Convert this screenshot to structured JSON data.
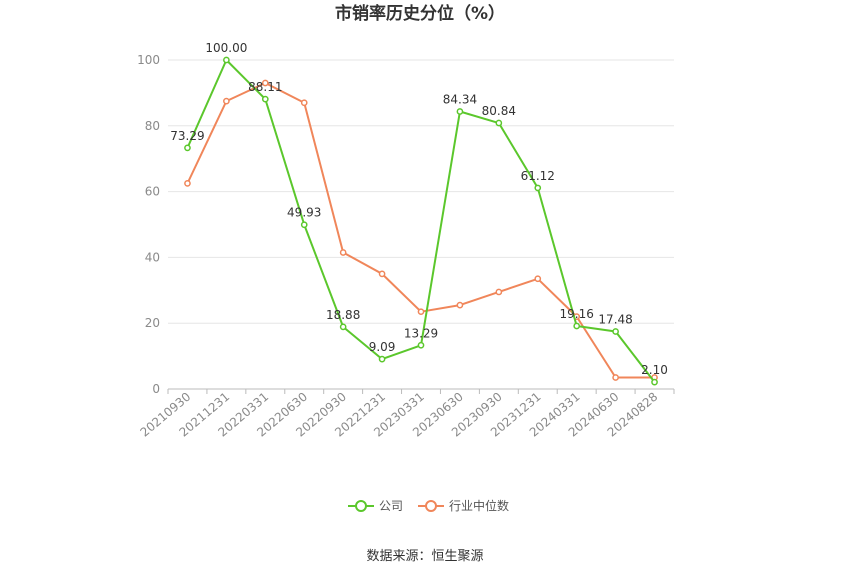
{
  "chart_data": {
    "type": "line",
    "title": "市销率历史分位（%）",
    "categories": [
      "20210930",
      "20211231",
      "20220331",
      "20220630",
      "20220930",
      "20221231",
      "20230331",
      "20230630",
      "20230930",
      "20231231",
      "20240331",
      "20240630",
      "20240828"
    ],
    "ylim": [
      0,
      100
    ],
    "yticks": [
      0,
      20,
      40,
      60,
      80,
      100
    ],
    "grid": true,
    "legend_position": "bottom",
    "series": [
      {
        "name": "公司",
        "color": "#5bc72c",
        "values": [
          73.29,
          100.0,
          88.11,
          49.93,
          18.88,
          9.09,
          13.29,
          84.34,
          80.84,
          61.12,
          19.16,
          17.48,
          2.1
        ],
        "labels": [
          "73.29",
          "100.00",
          "88.11",
          "49.93",
          "18.88",
          "9.09",
          "13.29",
          "84.34",
          "80.84",
          "61.12",
          "19.16",
          "17.48",
          "2.10"
        ]
      },
      {
        "name": "行业中位数",
        "color": "#f0865a",
        "values": [
          62.5,
          87.5,
          93.0,
          87.0,
          41.5,
          35.0,
          23.5,
          25.5,
          29.5,
          33.5,
          22.0,
          3.5,
          3.5
        ]
      }
    ]
  },
  "source": "数据来源：恒生聚源"
}
